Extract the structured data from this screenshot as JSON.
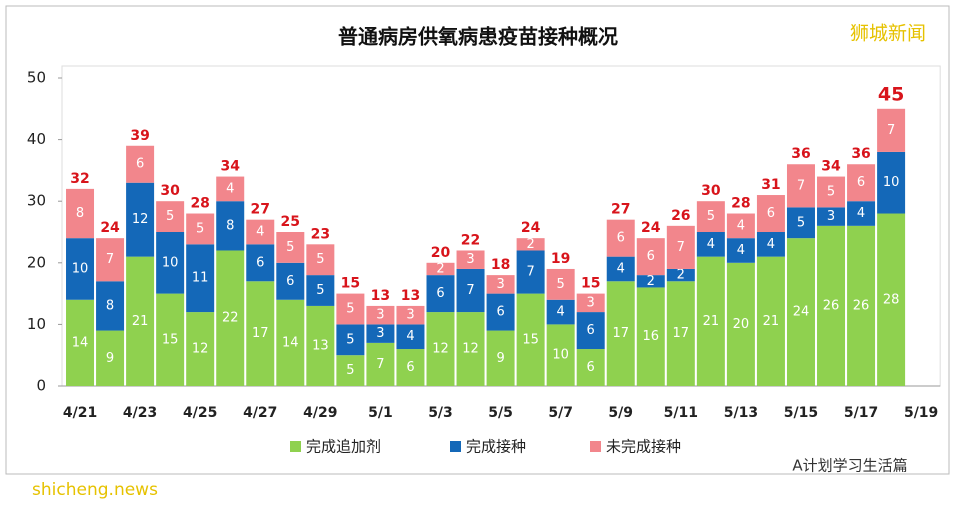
{
  "chart_data": {
    "type": "stacked_bar",
    "title": "普通病房供氧病患疫苗接种概况",
    "categories": [
      "4/21",
      null,
      "4/23",
      null,
      "4/25",
      null,
      "4/27",
      null,
      "4/29",
      null,
      "5/1",
      null,
      "5/3",
      null,
      "5/5",
      null,
      "5/7",
      null,
      "5/9",
      null,
      "5/11",
      null,
      "5/13",
      null,
      "5/15",
      null,
      "5/17",
      null,
      "5/19"
    ],
    "series": [
      {
        "name": "完成追加剂",
        "color": "#8fd14f",
        "values": [
          14,
          9,
          21,
          15,
          12,
          22,
          17,
          14,
          13,
          5,
          7,
          6,
          12,
          12,
          9,
          15,
          10,
          6,
          17,
          16,
          17,
          21,
          20,
          21,
          24,
          26,
          26,
          28,
          null
        ]
      },
      {
        "name": "完成接种",
        "color": "#1468b8",
        "values": [
          10,
          8,
          12,
          10,
          11,
          8,
          6,
          6,
          5,
          5,
          3,
          4,
          6,
          7,
          6,
          7,
          4,
          6,
          4,
          2,
          2,
          4,
          4,
          4,
          5,
          3,
          4,
          10,
          null
        ]
      },
      {
        "name": "未完成接种",
        "color": "#f2868c",
        "values": [
          8,
          7,
          6,
          5,
          5,
          4,
          4,
          5,
          5,
          5,
          3,
          3,
          2,
          3,
          3,
          2,
          5,
          3,
          6,
          6,
          7,
          5,
          4,
          6,
          7,
          5,
          6,
          7,
          null
        ]
      }
    ],
    "totals": [
      32,
      24,
      39,
      30,
      28,
      34,
      27,
      25,
      23,
      15,
      13,
      13,
      20,
      22,
      18,
      24,
      19,
      15,
      27,
      24,
      26,
      30,
      28,
      31,
      36,
      34,
      36,
      45,
      null
    ],
    "ylim": [
      0,
      50
    ],
    "yticks": [
      0,
      10,
      20,
      30,
      40,
      50
    ],
    "grid": false,
    "watermarks": [
      "狮城新闻",
      "A计划学习生活篇",
      "shicheng.news"
    ]
  }
}
